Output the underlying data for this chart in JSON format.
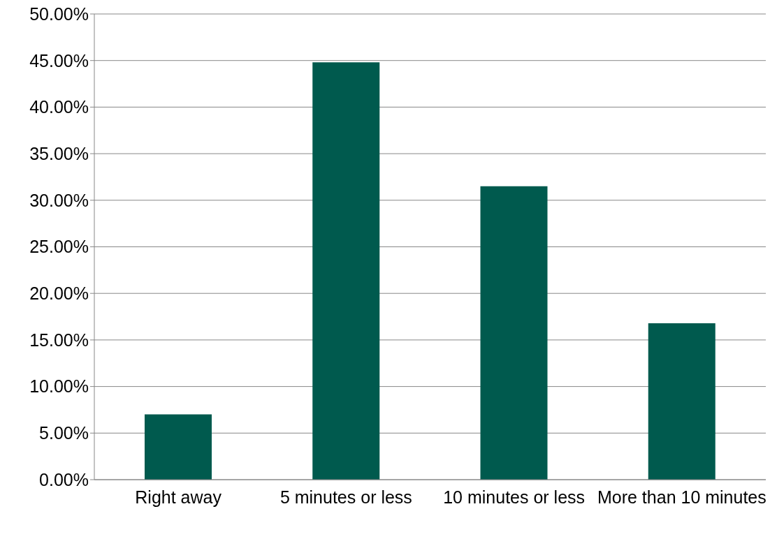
{
  "chart_data": {
    "type": "bar",
    "categories": [
      "Right away",
      "5 minutes or less",
      "10 minutes or less",
      "More than 10 minutes"
    ],
    "values": [
      7.0,
      44.8,
      31.5,
      16.8
    ],
    "color": "#005a4e",
    "ylim": [
      0,
      50
    ],
    "yticks": [
      {
        "value": 0,
        "label": "0.00%"
      },
      {
        "value": 5,
        "label": "5.00%"
      },
      {
        "value": 10,
        "label": "10.00%"
      },
      {
        "value": 15,
        "label": "15.00%"
      },
      {
        "value": 20,
        "label": "20.00%"
      },
      {
        "value": 25,
        "label": "25.00%"
      },
      {
        "value": 30,
        "label": "30.00%"
      },
      {
        "value": 35,
        "label": "35.00%"
      },
      {
        "value": 40,
        "label": "40.00%"
      },
      {
        "value": 45,
        "label": "45.00%"
      },
      {
        "value": 50,
        "label": "50.00%"
      }
    ],
    "grid": "y"
  }
}
